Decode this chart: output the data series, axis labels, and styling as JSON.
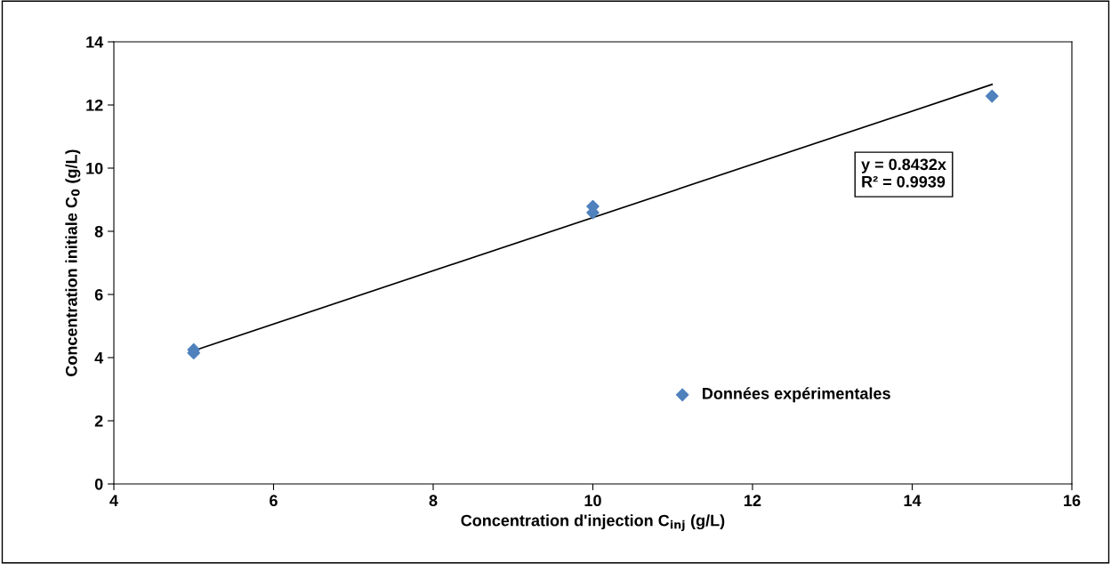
{
  "chart_data": {
    "type": "scatter",
    "xlabel": "Concentration d'injection C$_{inj}$ (g/L)",
    "ylabel": "Concentration initiale C$_{0}$ (g/L)",
    "series": [
      {
        "name": "Données expérimentales",
        "color": "#4f81bd",
        "marker": "diamond",
        "x": [
          5,
          5,
          10,
          10,
          15
        ],
        "values": [
          4.25,
          4.15,
          8.79,
          8.59,
          12.28
        ]
      },
      {
        "type": "line",
        "color": "#000000",
        "marker": "none",
        "x": [
          5,
          15
        ],
        "values": [
          4.22,
          12.65
        ]
      }
    ],
    "xlim": [
      4,
      16
    ],
    "xticks": [
      4,
      6,
      8,
      10,
      12,
      14,
      16
    ],
    "ylim": [
      0,
      14
    ],
    "yticks": [
      0,
      2,
      4,
      6,
      8,
      10,
      12,
      14
    ],
    "grid": false,
    "legend": "bottom right",
    "annotations": [
      "y = 0.8432x\nR² = 0.9939"
    ]
  }
}
